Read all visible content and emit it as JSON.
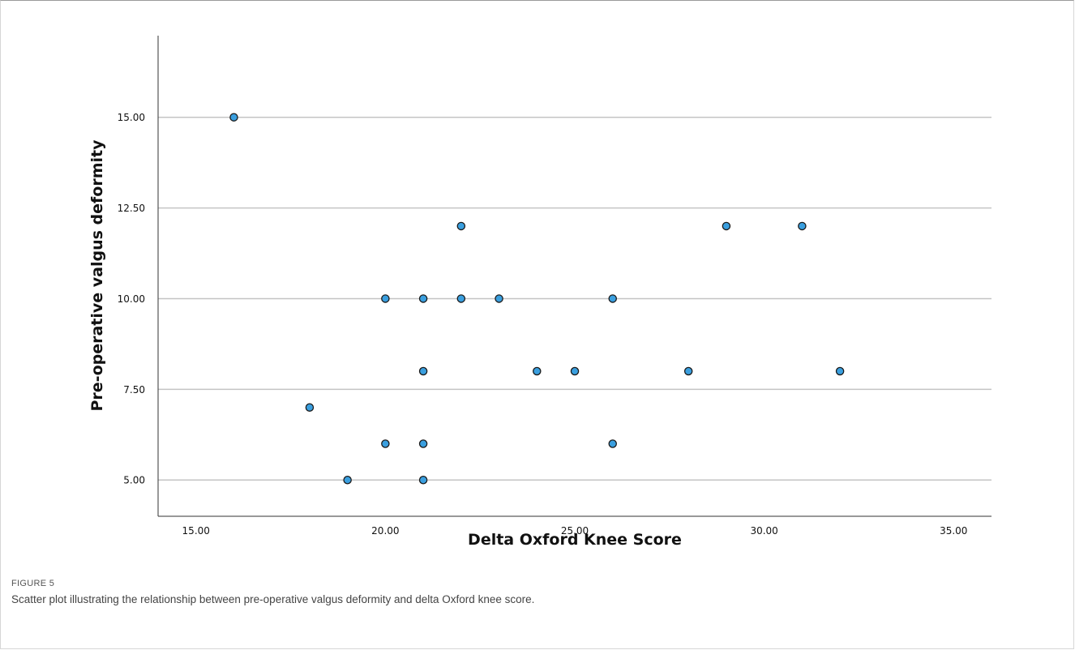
{
  "figure": {
    "label": "FIGURE 5",
    "caption": "Scatter plot illustrating the relationship between pre-operative valgus deformity and delta Oxford knee score."
  },
  "colors": {
    "point_fill": "#3a9fdf",
    "point_stroke": "#1a1a1a",
    "gridline": "#c4c4c4",
    "axis": "#333333"
  },
  "chart_data": {
    "type": "scatter",
    "xlabel": "Delta Oxford Knee Score",
    "ylabel": "Pre-operative valgus deformity",
    "xlim": [
      14,
      36
    ],
    "ylim": [
      4,
      17.25
    ],
    "x_ticks": [
      15,
      20,
      25,
      30,
      35
    ],
    "x_tick_labels": [
      "15.00",
      "20.00",
      "25.00",
      "30.00",
      "35.00"
    ],
    "y_ticks": [
      5,
      7.5,
      10,
      12.5,
      15
    ],
    "y_tick_labels": [
      "5.00",
      "7.50",
      "10.00",
      "12.50",
      "15.00"
    ],
    "grid": "horizontal",
    "points": [
      {
        "x": 16,
        "y": 15
      },
      {
        "x": 22,
        "y": 12
      },
      {
        "x": 29,
        "y": 12
      },
      {
        "x": 31,
        "y": 12
      },
      {
        "x": 20,
        "y": 10
      },
      {
        "x": 21,
        "y": 10
      },
      {
        "x": 22,
        "y": 10
      },
      {
        "x": 23,
        "y": 10
      },
      {
        "x": 26,
        "y": 10
      },
      {
        "x": 21,
        "y": 8
      },
      {
        "x": 24,
        "y": 8
      },
      {
        "x": 25,
        "y": 8
      },
      {
        "x": 28,
        "y": 8
      },
      {
        "x": 32,
        "y": 8
      },
      {
        "x": 18,
        "y": 7
      },
      {
        "x": 20,
        "y": 6
      },
      {
        "x": 21,
        "y": 6
      },
      {
        "x": 26,
        "y": 6
      },
      {
        "x": 19,
        "y": 5
      },
      {
        "x": 21,
        "y": 5
      }
    ]
  }
}
